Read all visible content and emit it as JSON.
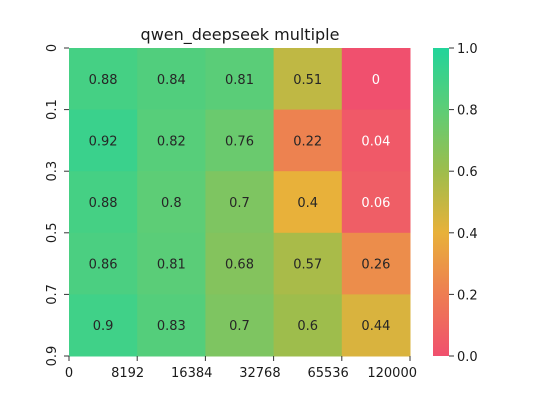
{
  "chart_data": {
    "type": "heatmap",
    "title": "qwen_deepseek multiple",
    "xlabel": "",
    "ylabel": "",
    "x_tick_labels": [
      "0",
      "8192",
      "16384",
      "32768",
      "65536",
      "120000"
    ],
    "y_tick_labels": [
      "0",
      "0.1",
      "0.3",
      "0.5",
      "0.7",
      "0.9"
    ],
    "values": [
      [
        0.88,
        0.84,
        0.81,
        0.51,
        0
      ],
      [
        0.92,
        0.82,
        0.76,
        0.22,
        0.04
      ],
      [
        0.88,
        0.8,
        0.7,
        0.4,
        0.06
      ],
      [
        0.86,
        0.81,
        0.68,
        0.57,
        0.26
      ],
      [
        0.9,
        0.83,
        0.7,
        0.6,
        0.44
      ]
    ],
    "annotations": [
      [
        "0.88",
        "0.84",
        "0.81",
        "0.51",
        "0"
      ],
      [
        "0.92",
        "0.82",
        "0.76",
        "0.22",
        "0.04"
      ],
      [
        "0.88",
        "0.8",
        "0.7",
        "0.4",
        "0.06"
      ],
      [
        "0.86",
        "0.81",
        "0.68",
        "0.57",
        "0.26"
      ],
      [
        "0.9",
        "0.83",
        "0.7",
        "0.6",
        "0.44"
      ]
    ],
    "colorbar": {
      "range": [
        0.0,
        1.0
      ],
      "tick_labels": [
        "0.0",
        "0.2",
        "0.4",
        "0.6",
        "0.8",
        "1.0"
      ],
      "colors": [
        "#f0506e",
        "#ee7d52",
        "#e8b13a",
        "#9ebd4c",
        "#5dcd76",
        "#22d49a"
      ]
    }
  }
}
